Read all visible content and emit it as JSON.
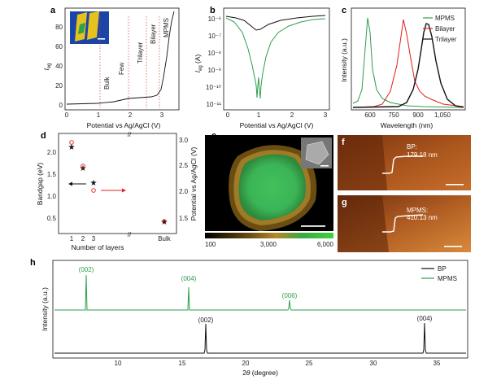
{
  "panels": {
    "a": {
      "label": "a",
      "xlabel": "Potential vs Ag/AgCl (V)",
      "ylabel_main": "I",
      "ylabel_sub": "eg",
      "xticks": [
        "0",
        "1",
        "2",
        "3"
      ],
      "yticks": [
        "0",
        "20",
        "40",
        "60",
        "80"
      ],
      "regions": [
        "Bulk",
        "Few",
        "Trilayer",
        "Bilayer",
        "MPMS"
      ]
    },
    "b": {
      "label": "b",
      "xlabel": "Potential vs Ag/AgCl (V)",
      "ylabel_main": "I",
      "ylabel_sub": "eg",
      "ylabel_unit": " (A)",
      "xticks": [
        "0",
        "1",
        "2",
        "3"
      ],
      "yticks": [
        "10⁻¹¹",
        "10⁻¹⁰",
        "10⁻⁹",
        "10⁻⁸",
        "10⁻⁷",
        "10⁻⁶"
      ]
    },
    "c": {
      "label": "c",
      "xlabel": "Wavelength (nm)",
      "ylabel": "Intensity (a.u.)",
      "xticks": [
        "600",
        "750",
        "900",
        "1,050"
      ],
      "legend": [
        "MPMS",
        "Bilayer",
        "Trilayer"
      ]
    },
    "d": {
      "label": "d",
      "xlabel": "Number of layers",
      "ylabel_left": "Bandgap (eV)",
      "ylabel_right": "Potential vs Ag/AgCl (V)",
      "xticks": [
        "1",
        "2",
        "3",
        "Bulk"
      ],
      "yticks_left": [
        "0.5",
        "1.0",
        "1.5",
        "2.0"
      ],
      "yticks_right": [
        "1.5",
        "2.0",
        "2.5",
        "3.0"
      ]
    },
    "e": {
      "label": "e",
      "colorbar_ticks": [
        "100",
        "3,000",
        "6,000"
      ]
    },
    "f": {
      "label": "f",
      "annotation_1": "BP:",
      "annotation_2": "179.18 nm"
    },
    "g": {
      "label": "g",
      "annotation_1": "MPMS:",
      "annotation_2": "410.13 nm"
    },
    "h": {
      "label": "h",
      "xlabel_main": "2",
      "xlabel_theta": "θ",
      "xlabel_unit": " (degree)",
      "ylabel": "Intensity (a.u.)",
      "xticks": [
        "10",
        "15",
        "20",
        "25",
        "30",
        "35"
      ],
      "legend": [
        "BP",
        "MPMS"
      ],
      "mpms_peaks": [
        "(002)",
        "(004)",
        "(006)"
      ],
      "bp_peaks": [
        "(002)",
        "(004)"
      ]
    }
  },
  "colors": {
    "green": "#2e9e4a",
    "red": "#e02020",
    "black": "#111111",
    "mpms_legend": "#2e9e4a",
    "bp_legend": "#111111"
  }
}
